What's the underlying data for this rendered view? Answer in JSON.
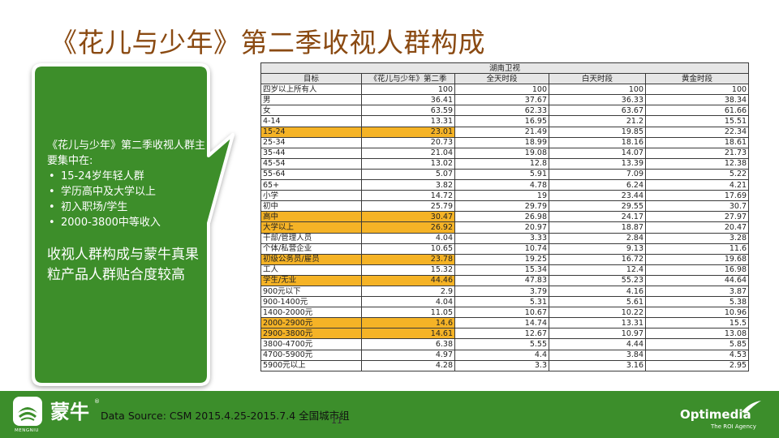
{
  "title": "《花儿与少年》第二季收视人群构成",
  "callout": {
    "intro": "《花儿与少年》第二季收视人群主要集中在:",
    "bullets": [
      "15-24岁年轻人群",
      "学历高中及大学以上",
      "初入职场/学生",
      "2000-3800中等收入"
    ],
    "conclusion": "收视人群构成与蒙牛真果粒产品人群贴合度较高"
  },
  "table": {
    "group_header": "湖南卫视",
    "headers": [
      "目标",
      "《花儿与少年》第二季",
      "全天时段",
      "白天时段",
      "黄金时段"
    ],
    "rows": [
      {
        "label": "四岁以上所有人",
        "values": [
          "100",
          "100",
          "100",
          "100"
        ],
        "highlight": false
      },
      {
        "label": "男",
        "values": [
          "36.41",
          "37.67",
          "36.33",
          "38.34"
        ],
        "highlight": false
      },
      {
        "label": "女",
        "values": [
          "63.59",
          "62.33",
          "63.67",
          "61.66"
        ],
        "highlight": false
      },
      {
        "label": "4-14",
        "values": [
          "13.31",
          "16.95",
          "21.2",
          "15.51"
        ],
        "highlight": false
      },
      {
        "label": "15-24",
        "values": [
          "23.01",
          "21.49",
          "19.85",
          "22.34"
        ],
        "highlight": true
      },
      {
        "label": "25-34",
        "values": [
          "20.73",
          "18.99",
          "18.16",
          "18.61"
        ],
        "highlight": false
      },
      {
        "label": "35-44",
        "values": [
          "21.04",
          "19.08",
          "14.07",
          "21.73"
        ],
        "highlight": false
      },
      {
        "label": "45-54",
        "values": [
          "13.02",
          "12.8",
          "13.39",
          "12.38"
        ],
        "highlight": false
      },
      {
        "label": "55-64",
        "values": [
          "5.07",
          "5.91",
          "7.09",
          "5.22"
        ],
        "highlight": false
      },
      {
        "label": "65+",
        "values": [
          "3.82",
          "4.78",
          "6.24",
          "4.21"
        ],
        "highlight": false
      },
      {
        "label": "小学",
        "values": [
          "14.72",
          "19",
          "23.44",
          "17.69"
        ],
        "highlight": false
      },
      {
        "label": "初中",
        "values": [
          "25.79",
          "29.79",
          "29.55",
          "30.7"
        ],
        "highlight": false
      },
      {
        "label": "高中",
        "values": [
          "30.47",
          "26.98",
          "24.17",
          "27.97"
        ],
        "highlight": true
      },
      {
        "label": "大学以上",
        "values": [
          "26.92",
          "20.97",
          "18.87",
          "20.47"
        ],
        "highlight": true
      },
      {
        "label": "干部/管理人员",
        "values": [
          "4.04",
          "3.33",
          "2.84",
          "3.28"
        ],
        "highlight": false
      },
      {
        "label": "个体/私营企业",
        "values": [
          "10.65",
          "10.74",
          "9.13",
          "11.6"
        ],
        "highlight": false
      },
      {
        "label": "初级公务员/雇员",
        "values": [
          "23.78",
          "19.25",
          "16.72",
          "19.68"
        ],
        "highlight": true
      },
      {
        "label": "工人",
        "values": [
          "15.32",
          "15.34",
          "12.4",
          "16.98"
        ],
        "highlight": false
      },
      {
        "label": "学生/无业",
        "values": [
          "44.46",
          "47.83",
          "55.23",
          "44.64"
        ],
        "highlight": true
      },
      {
        "label": "900元以下",
        "values": [
          "2.9",
          "3.79",
          "4.16",
          "3.87"
        ],
        "highlight": false
      },
      {
        "label": "900-1400元",
        "values": [
          "4.04",
          "5.31",
          "5.61",
          "5.38"
        ],
        "highlight": false
      },
      {
        "label": "1400-2000元",
        "values": [
          "11.05",
          "10.67",
          "10.22",
          "10.96"
        ],
        "highlight": false
      },
      {
        "label": "2000-2900元",
        "values": [
          "14.6",
          "14.74",
          "13.31",
          "15.5"
        ],
        "highlight": true
      },
      {
        "label": "2900-3800元",
        "values": [
          "14.61",
          "12.67",
          "10.97",
          "13.08"
        ],
        "highlight": true
      },
      {
        "label": "3800-4700元",
        "values": [
          "6.38",
          "5.55",
          "4.44",
          "5.85"
        ],
        "highlight": false
      },
      {
        "label": "4700-5900元",
        "values": [
          "4.97",
          "4.4",
          "3.84",
          "4.53"
        ],
        "highlight": false
      },
      {
        "label": "5900元以上",
        "values": [
          "4.28",
          "3.3",
          "3.16",
          "2.95"
        ],
        "highlight": false
      }
    ]
  },
  "footer": {
    "brand": "蒙牛",
    "brand_reg": "®",
    "brand_tagline": "MENGNIU",
    "source": "Data Source: CSM 2015.4.25-2015.7.4 全国城市组",
    "page_number": "11",
    "agency_name": "Optimedia",
    "agency_tagline": "The ROI Agency"
  },
  "colors": {
    "title": "#8a4a12",
    "callout_fill": "#3c8e2b",
    "highlight": "#f5b326",
    "footer": "#3c8e2b"
  }
}
